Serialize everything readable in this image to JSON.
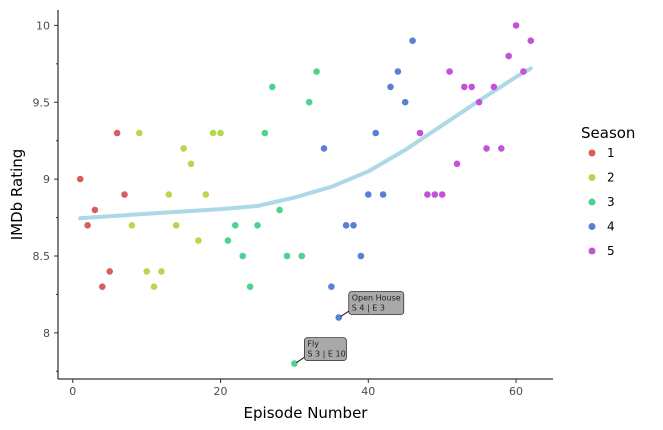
{
  "chart_data": {
    "type": "scatter",
    "xlabel": "Episode Number",
    "ylabel": "IMDb Rating",
    "xlim": [
      -2,
      65
    ],
    "ylim": [
      7.7,
      10.1
    ],
    "x_ticks": [
      0,
      20,
      40,
      60
    ],
    "y_ticks": [
      8,
      8.5,
      9,
      9.5,
      10
    ],
    "y_tick_labels": [
      "8",
      "8.5",
      "9",
      "9.5",
      "10"
    ],
    "legend": {
      "title": "Season",
      "placement": "right"
    },
    "series": [
      {
        "name": "1",
        "color": "#d65f5f",
        "points": [
          [
            1,
            9.0
          ],
          [
            2,
            8.7
          ],
          [
            3,
            8.8
          ],
          [
            4,
            8.3
          ],
          [
            5,
            8.4
          ],
          [
            6,
            9.3
          ],
          [
            7,
            8.9
          ]
        ]
      },
      {
        "name": "2",
        "color": "#b6d84f",
        "points": [
          [
            8,
            8.7
          ],
          [
            9,
            9.3
          ],
          [
            10,
            8.4
          ],
          [
            11,
            8.3
          ],
          [
            12,
            8.4
          ],
          [
            13,
            8.9
          ],
          [
            14,
            8.7
          ],
          [
            15,
            9.2
          ],
          [
            16,
            9.1
          ],
          [
            17,
            8.6
          ],
          [
            18,
            8.9
          ],
          [
            19,
            9.3
          ],
          [
            20,
            9.3
          ]
        ]
      },
      {
        "name": "3",
        "color": "#4fd28f",
        "points": [
          [
            21,
            8.6
          ],
          [
            22,
            8.7
          ],
          [
            23,
            8.5
          ],
          [
            24,
            8.3
          ],
          [
            25,
            8.7
          ],
          [
            26,
            9.3
          ],
          [
            27,
            9.6
          ],
          [
            28,
            8.8
          ],
          [
            29,
            8.5
          ],
          [
            30,
            7.8
          ],
          [
            31,
            8.5
          ],
          [
            32,
            9.5
          ],
          [
            33,
            9.7
          ]
        ]
      },
      {
        "name": "4",
        "color": "#5a7fd6",
        "points": [
          [
            34,
            9.2
          ],
          [
            35,
            8.3
          ],
          [
            36,
            8.1
          ],
          [
            37,
            8.7
          ],
          [
            38,
            8.7
          ],
          [
            39,
            8.5
          ],
          [
            40,
            8.9
          ],
          [
            41,
            9.3
          ],
          [
            42,
            8.9
          ],
          [
            43,
            9.6
          ],
          [
            44,
            9.7
          ],
          [
            45,
            9.5
          ],
          [
            46,
            9.9
          ]
        ]
      },
      {
        "name": "5",
        "color": "#c452d8",
        "points": [
          [
            47,
            9.3
          ],
          [
            48,
            8.9
          ],
          [
            49,
            8.9
          ],
          [
            50,
            8.9
          ],
          [
            51,
            9.7
          ],
          [
            52,
            9.1
          ],
          [
            53,
            9.6
          ],
          [
            54,
            9.6
          ],
          [
            55,
            9.5
          ],
          [
            56,
            9.2
          ],
          [
            57,
            9.6
          ],
          [
            58,
            9.2
          ],
          [
            59,
            9.8
          ],
          [
            60,
            10.0
          ],
          [
            61,
            9.7
          ],
          [
            62,
            9.9
          ]
        ]
      }
    ],
    "trend": {
      "color": "#add8e6",
      "points": [
        [
          1,
          8.745
        ],
        [
          10,
          8.775
        ],
        [
          20,
          8.805
        ],
        [
          25,
          8.825
        ],
        [
          30,
          8.88
        ],
        [
          35,
          8.95
        ],
        [
          40,
          9.05
        ],
        [
          45,
          9.19
        ],
        [
          50,
          9.35
        ],
        [
          55,
          9.51
        ],
        [
          60,
          9.665
        ],
        [
          62,
          9.72
        ]
      ]
    },
    "annotations": [
      {
        "title": "Open House",
        "subtitle": "S 4 | E 3",
        "x": 36,
        "y": 8.1
      },
      {
        "title": "Fly",
        "subtitle": "S 3 | E 10",
        "x": 30,
        "y": 7.8
      }
    ]
  }
}
